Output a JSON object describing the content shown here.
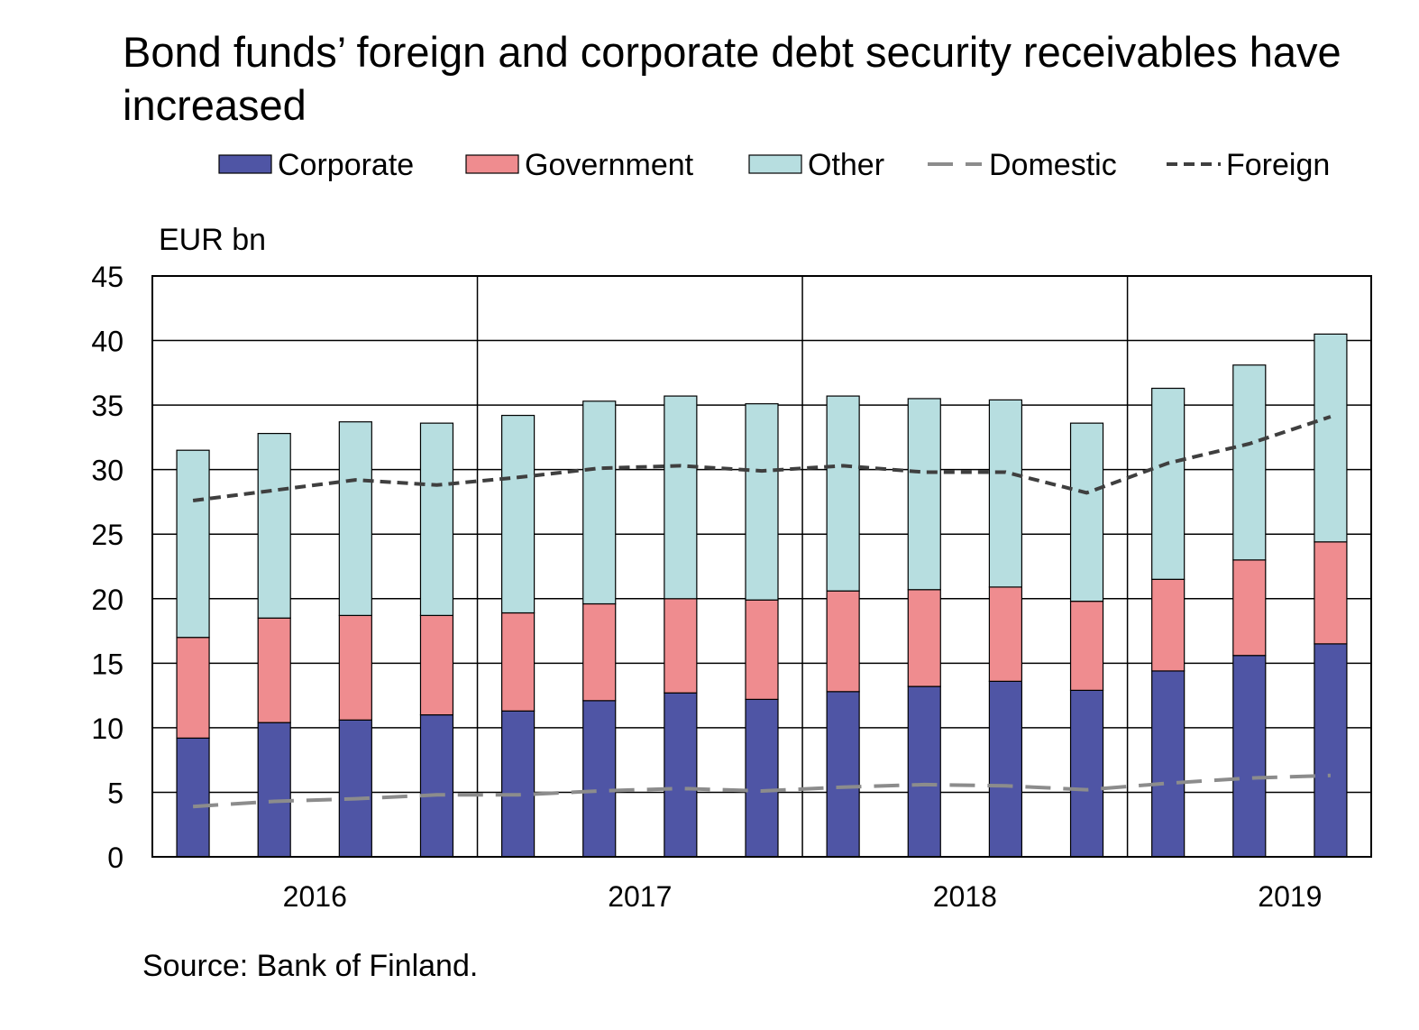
{
  "chart_data": {
    "type": "bar",
    "title": "Bond funds’ foreign and corporate debt security receivables have increased",
    "ylabel": "EUR bn",
    "xlabel": "",
    "ylim": [
      0,
      45
    ],
    "yticks": [
      0,
      5,
      10,
      15,
      20,
      25,
      30,
      35,
      40,
      45
    ],
    "year_labels": [
      "2016",
      "2017",
      "2018",
      "2019"
    ],
    "quarters": [
      "2016Q1",
      "2016Q2",
      "2016Q3",
      "2016Q4",
      "2017Q1",
      "2017Q2",
      "2017Q3",
      "2017Q4",
      "2018Q1",
      "2018Q2",
      "2018Q3",
      "2018Q4",
      "2019Q1",
      "2019Q2",
      "2019Q3"
    ],
    "stacked": true,
    "grid": true,
    "legend_position": "top",
    "series": [
      {
        "name": "Corporate",
        "kind": "bar",
        "color": "#4F55A5",
        "values": [
          9.2,
          10.4,
          10.6,
          11.0,
          11.3,
          12.1,
          12.7,
          12.2,
          12.8,
          13.2,
          13.6,
          12.9,
          14.4,
          15.6,
          16.5
        ]
      },
      {
        "name": "Government",
        "kind": "bar",
        "color": "#EF8C8F",
        "values": [
          7.8,
          8.1,
          8.1,
          7.7,
          7.6,
          7.5,
          7.3,
          7.7,
          7.8,
          7.5,
          7.3,
          6.9,
          7.1,
          7.4,
          7.9
        ]
      },
      {
        "name": "Other",
        "kind": "bar",
        "color": "#B7DEE0",
        "values": [
          14.5,
          14.3,
          15.0,
          14.9,
          15.3,
          15.7,
          15.7,
          15.2,
          15.1,
          14.8,
          14.5,
          13.8,
          14.8,
          15.1,
          16.1
        ]
      },
      {
        "name": "Domestic",
        "kind": "line",
        "style": "long-dash",
        "color": "#8C8C8C",
        "values": [
          3.9,
          4.3,
          4.5,
          4.8,
          4.8,
          5.1,
          5.3,
          5.1,
          5.4,
          5.6,
          5.5,
          5.2,
          5.7,
          6.1,
          6.3
        ]
      },
      {
        "name": "Foreign",
        "kind": "line",
        "style": "short-dash",
        "color": "#3F3F3F",
        "values": [
          27.6,
          28.4,
          29.2,
          28.8,
          29.4,
          30.1,
          30.3,
          29.9,
          30.3,
          29.8,
          29.8,
          28.2,
          30.5,
          32.0,
          34.1
        ]
      }
    ],
    "source": "Source: Bank of Finland."
  }
}
